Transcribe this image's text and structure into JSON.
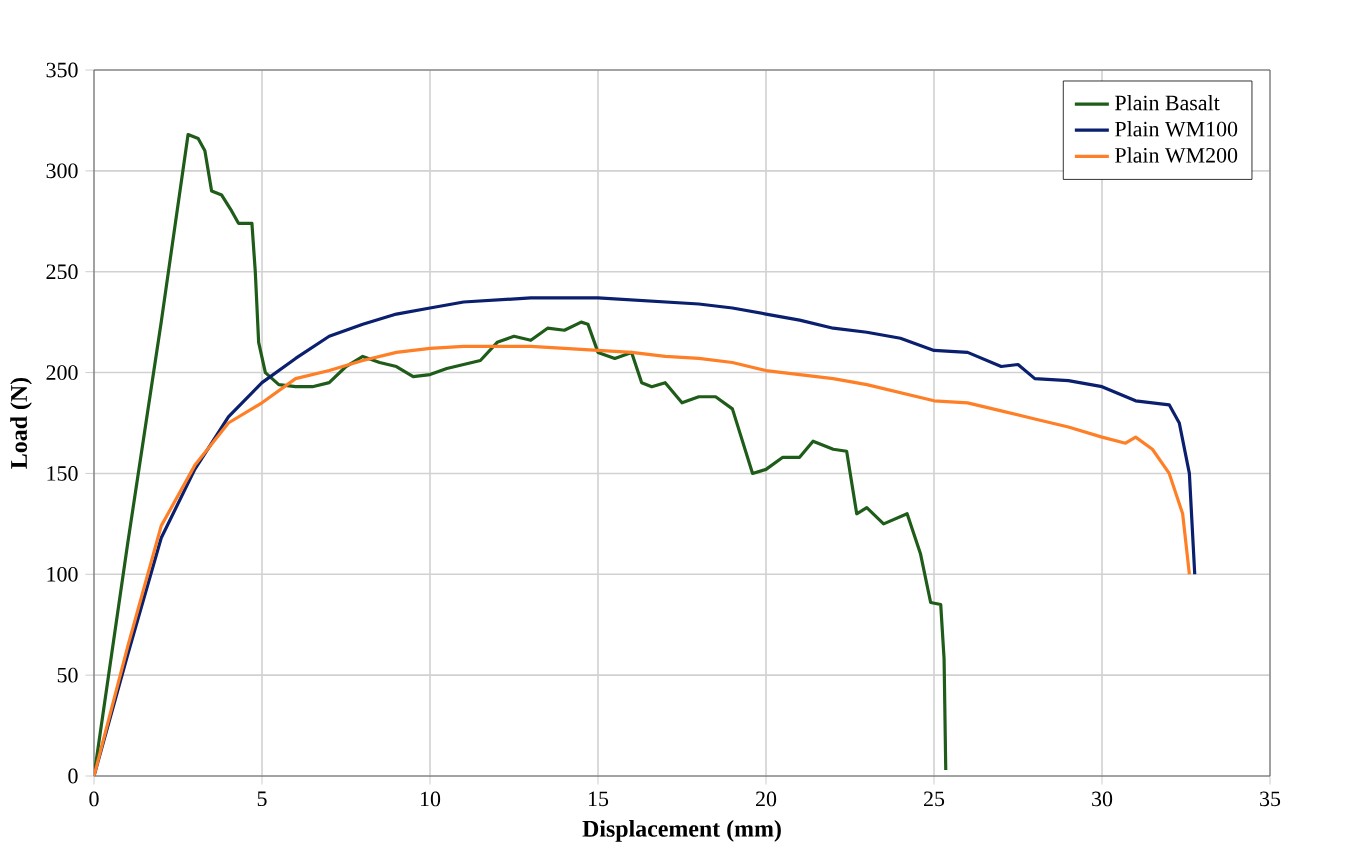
{
  "chart_data": {
    "type": "line",
    "xlabel": "Displacement (mm)",
    "ylabel": "Load (N)",
    "xlim": [
      0,
      35
    ],
    "ylim": [
      0,
      350
    ],
    "xticks": [
      0,
      5,
      10,
      15,
      20,
      25,
      30,
      35
    ],
    "yticks": [
      0,
      50,
      100,
      150,
      200,
      250,
      300,
      350
    ],
    "grid": true,
    "legend": "top right",
    "marker": "none",
    "line_style": "solid",
    "series": [
      {
        "name": "Plain Basalt",
        "color": "#1f5c1a",
        "x": [
          0,
          1,
          2,
          2.8,
          3.1,
          3.3,
          3.5,
          3.8,
          4.1,
          4.3,
          4.7,
          4.8,
          4.9,
          5.1,
          5.5,
          6,
          6.5,
          7,
          7.5,
          8,
          8.5,
          9,
          9.5,
          10,
          10.5,
          11,
          11.5,
          12,
          12.5,
          13,
          13.5,
          14,
          14.5,
          14.7,
          15,
          15.5,
          16,
          16.3,
          16.6,
          17,
          17.5,
          18,
          18.5,
          19,
          19.6,
          20,
          20.5,
          21,
          21.4,
          22,
          22.4,
          22.7,
          23,
          23.5,
          24.2,
          24.6,
          24.9,
          25.2,
          25.3,
          25.35
        ],
        "values": [
          0,
          115,
          225,
          318,
          316,
          310,
          290,
          288,
          280,
          274,
          274,
          250,
          215,
          200,
          194,
          193,
          193,
          195,
          203,
          208,
          205,
          203,
          198,
          199,
          202,
          204,
          206,
          215,
          218,
          216,
          222,
          221,
          225,
          224,
          210,
          207,
          210,
          195,
          193,
          195,
          185,
          188,
          188,
          182,
          150,
          152,
          158,
          158,
          166,
          162,
          161,
          130,
          133,
          125,
          130,
          110,
          86,
          85,
          58,
          3
        ]
      },
      {
        "name": "Plain WM100",
        "color": "#0a1f6e",
        "x": [
          0,
          1,
          2,
          3,
          4,
          5,
          6,
          7,
          8,
          9,
          10,
          11,
          12,
          13,
          14,
          15,
          16,
          17,
          18,
          19,
          20,
          21,
          22,
          23,
          24,
          25,
          26,
          27,
          27.5,
          28,
          29,
          30,
          31,
          32,
          32.3,
          32.6,
          32.76
        ],
        "values": [
          0,
          60,
          118,
          152,
          178,
          195,
          207,
          218,
          224,
          229,
          232,
          235,
          236,
          237,
          237,
          237,
          236,
          235,
          234,
          232,
          229,
          226,
          222,
          220,
          217,
          211,
          210,
          203,
          204,
          197,
          196,
          193,
          186,
          184,
          175,
          150,
          100
        ]
      },
      {
        "name": "Plain WM200",
        "color": "#ff7f27",
        "x": [
          0,
          1,
          2,
          3,
          4,
          5,
          6,
          7,
          8,
          9,
          10,
          11,
          12,
          13,
          14,
          15,
          16,
          17,
          18,
          19,
          20,
          21,
          22,
          23,
          24,
          25,
          26,
          27,
          28,
          29,
          30,
          30.7,
          31,
          31.5,
          32,
          32.4,
          32.6
        ],
        "values": [
          0,
          64,
          124,
          154,
          175,
          185,
          197,
          201,
          206,
          210,
          212,
          213,
          213,
          213,
          212,
          211,
          210,
          208,
          207,
          205,
          201,
          199,
          197,
          194,
          190,
          186,
          185,
          181,
          177,
          173,
          168,
          165,
          168,
          162,
          150,
          130,
          100
        ]
      }
    ]
  }
}
